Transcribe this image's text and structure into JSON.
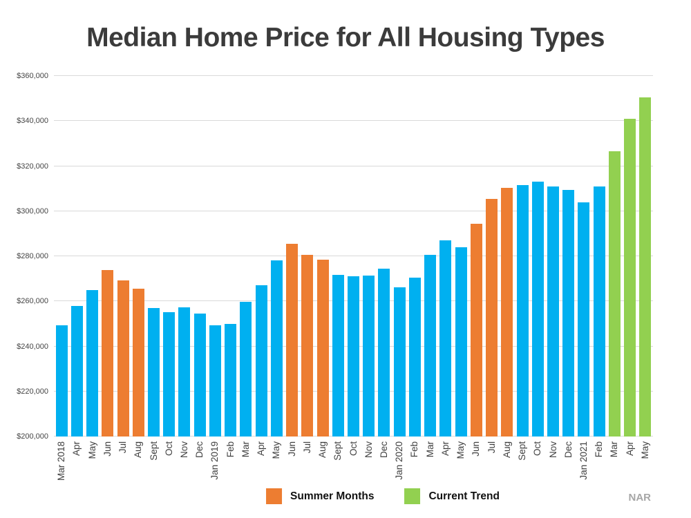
{
  "page": {
    "credit": "NAR"
  },
  "colors": {
    "standard": "#00B0F0",
    "summer": "#ED7D31",
    "trend": "#92D050",
    "gridline": "#d9d9d9",
    "title_text": "#3b3b3b",
    "axis_text": "#3f3f3f",
    "credit_text": "#a6a6a6"
  },
  "chart_data": {
    "type": "bar",
    "title": "Median Home Price for All Housing Types",
    "xlabel": "",
    "ylabel": "",
    "ylim": [
      200000,
      360000
    ],
    "ytick_step": 20000,
    "ytick_labels": [
      "$200,000",
      "$220,000",
      "$240,000",
      "$260,000",
      "$280,000",
      "$300,000",
      "$320,000",
      "$340,000",
      "$360,000"
    ],
    "grid": "horizontal",
    "legend_position": "bottom-center",
    "credit": "NAR",
    "legend": [
      {
        "label": "Summer Months",
        "series": "summer",
        "color": "#ED7D31"
      },
      {
        "label": "Current Trend",
        "series": "trend",
        "color": "#92D050"
      }
    ],
    "points": [
      {
        "month": "Mar 2018",
        "value": 249500,
        "series": "standard"
      },
      {
        "month": "Apr",
        "value": 257900,
        "series": "standard"
      },
      {
        "month": "May",
        "value": 264900,
        "series": "standard"
      },
      {
        "month": "Jun",
        "value": 273800,
        "series": "summer"
      },
      {
        "month": "Jul",
        "value": 269300,
        "series": "summer"
      },
      {
        "month": "Aug",
        "value": 265500,
        "series": "summer"
      },
      {
        "month": "Sept",
        "value": 256900,
        "series": "standard"
      },
      {
        "month": "Oct",
        "value": 255200,
        "series": "standard"
      },
      {
        "month": "Nov",
        "value": 257400,
        "series": "standard"
      },
      {
        "month": "Dec",
        "value": 254600,
        "series": "standard"
      },
      {
        "month": "Jan 2019",
        "value": 249300,
        "series": "standard"
      },
      {
        "month": "Feb",
        "value": 249900,
        "series": "standard"
      },
      {
        "month": "Mar",
        "value": 259700,
        "series": "standard"
      },
      {
        "month": "Apr",
        "value": 267200,
        "series": "standard"
      },
      {
        "month": "May",
        "value": 278200,
        "series": "standard"
      },
      {
        "month": "Jun",
        "value": 285500,
        "series": "summer"
      },
      {
        "month": "Jul",
        "value": 280600,
        "series": "summer"
      },
      {
        "month": "Aug",
        "value": 278400,
        "series": "summer"
      },
      {
        "month": "Sept",
        "value": 271600,
        "series": "standard"
      },
      {
        "month": "Oct",
        "value": 271200,
        "series": "standard"
      },
      {
        "month": "Nov",
        "value": 271500,
        "series": "standard"
      },
      {
        "month": "Dec",
        "value": 274500,
        "series": "standard"
      },
      {
        "month": "Jan 2020",
        "value": 266200,
        "series": "standard"
      },
      {
        "month": "Feb",
        "value": 270500,
        "series": "standard"
      },
      {
        "month": "Mar",
        "value": 280600,
        "series": "standard"
      },
      {
        "month": "Apr",
        "value": 287100,
        "series": "standard"
      },
      {
        "month": "May",
        "value": 284100,
        "series": "standard"
      },
      {
        "month": "Jun",
        "value": 294500,
        "series": "summer"
      },
      {
        "month": "Jul",
        "value": 305500,
        "series": "summer"
      },
      {
        "month": "Aug",
        "value": 310500,
        "series": "summer"
      },
      {
        "month": "Sept",
        "value": 311500,
        "series": "standard"
      },
      {
        "month": "Oct",
        "value": 313200,
        "series": "standard"
      },
      {
        "month": "Nov",
        "value": 311000,
        "series": "standard"
      },
      {
        "month": "Dec",
        "value": 309400,
        "series": "standard"
      },
      {
        "month": "Jan 2021",
        "value": 304000,
        "series": "standard"
      },
      {
        "month": "Feb",
        "value": 311000,
        "series": "standard"
      },
      {
        "month": "Mar",
        "value": 326500,
        "series": "trend"
      },
      {
        "month": "Apr",
        "value": 341000,
        "series": "trend"
      },
      {
        "month": "May",
        "value": 350500,
        "series": "trend"
      }
    ]
  }
}
